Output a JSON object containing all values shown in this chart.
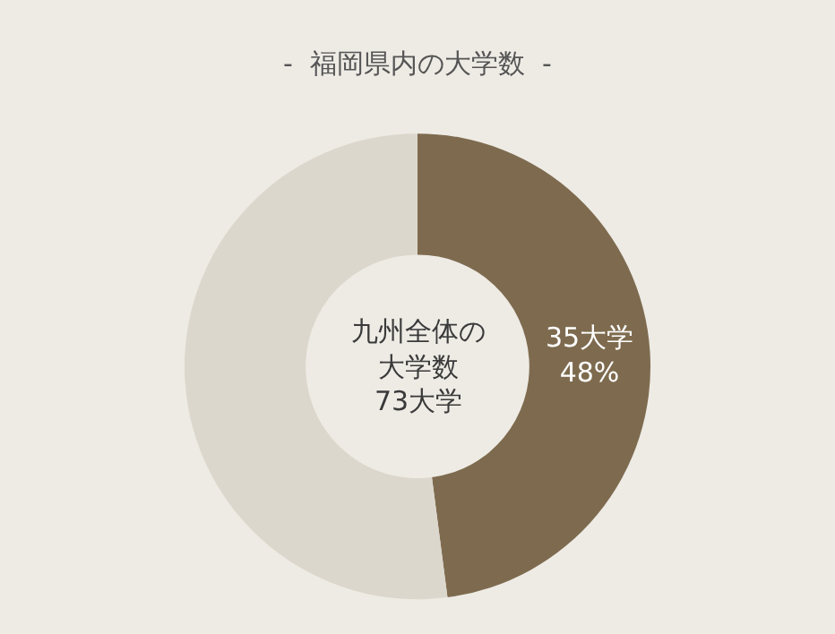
{
  "chart_data": {
    "type": "donut",
    "title": "-  福岡県内の大学数  -",
    "categories": [
      null,
      null
    ],
    "values": [
      35,
      38
    ],
    "colors": [
      "#7e6b4f",
      "#dcd7cc"
    ],
    "value_labels": [
      "35大学\n48%",
      null
    ],
    "annotations": [
      "九州全体の",
      "大学数",
      "73大学"
    ],
    "legend": false
  }
}
